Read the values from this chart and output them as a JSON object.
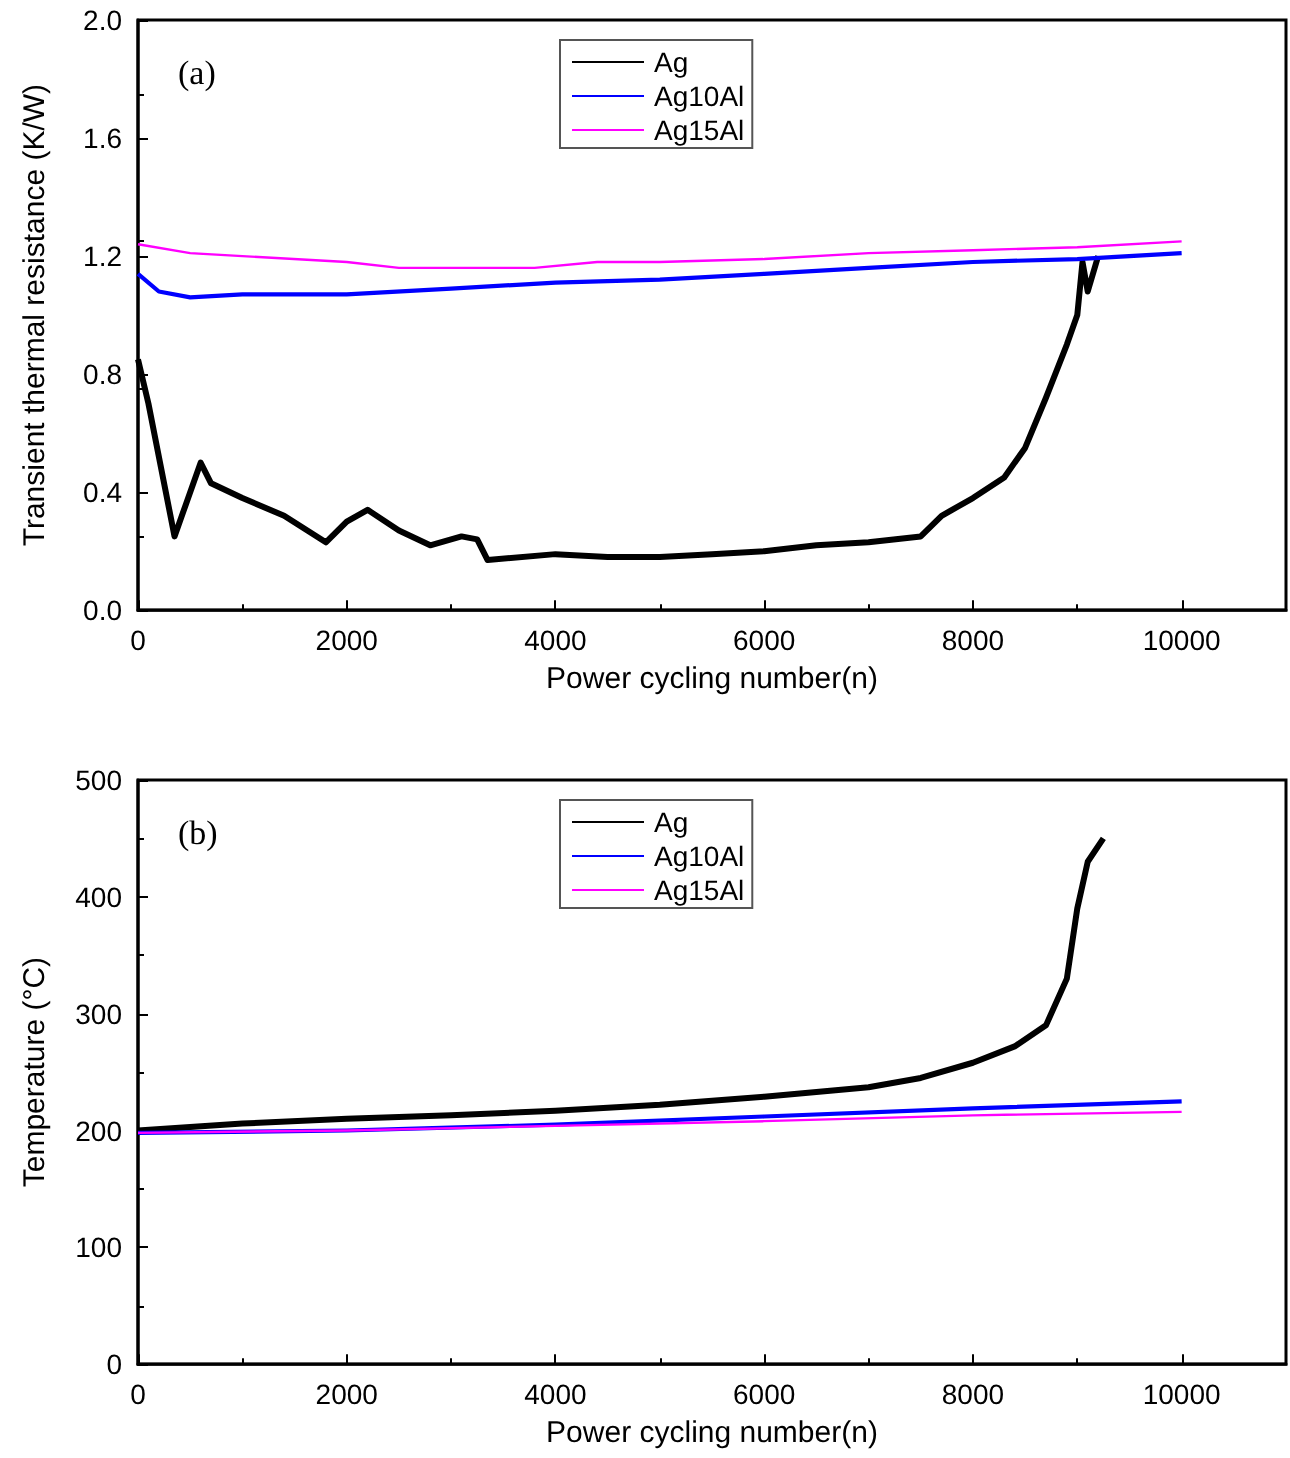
{
  "chart_data": [
    {
      "type": "line",
      "xlabel": "Power cycling number(n)",
      "ylabel": "Transient thermal resistance (K/W)",
      "annotations": [
        "(a)"
      ],
      "xlim": [
        0,
        11000
      ],
      "xticks": [
        0,
        2000,
        4000,
        6000,
        8000,
        10000
      ],
      "ylim": [
        0,
        2
      ],
      "yticks": [
        {
          "value": 0,
          "label": "0.0"
        },
        {
          "value": 0.4,
          "label": "0.4"
        },
        {
          "value": 0.8,
          "label": "0.8"
        },
        {
          "value": 1.2,
          "label": "1.2"
        },
        {
          "value": 1.6,
          "label": "1.6"
        },
        {
          "value": 2,
          "label": "2.0"
        }
      ],
      "grid": false,
      "legend": "top",
      "marker": "none",
      "series": [
        {
          "name": "Ag",
          "color": "#000000",
          "x": [
            0,
            100,
            350,
            450,
            600,
            700,
            1000,
            1400,
            1800,
            2000,
            2200,
            2500,
            2800,
            3100,
            3250,
            3350,
            4000,
            4500,
            5000,
            5500,
            6000,
            6500,
            7000,
            7500,
            7700,
            8000,
            8300,
            8500,
            8700,
            8900,
            9000,
            9050,
            9100,
            9200
          ],
          "values": [
            0.85,
            0.7,
            0.25,
            0.35,
            0.5,
            0.43,
            0.38,
            0.32,
            0.23,
            0.3,
            0.34,
            0.27,
            0.22,
            0.25,
            0.24,
            0.17,
            0.19,
            0.18,
            0.18,
            0.19,
            0.2,
            0.22,
            0.23,
            0.25,
            0.32,
            0.38,
            0.45,
            0.55,
            0.72,
            0.9,
            1.0,
            1.18,
            1.08,
            1.2
          ]
        },
        {
          "name": "Ag10Al",
          "color": "#0000ff",
          "x": [
            0,
            200,
            500,
            1000,
            2000,
            3000,
            4000,
            5000,
            6000,
            7000,
            8000,
            9000,
            10000
          ],
          "values": [
            1.14,
            1.08,
            1.06,
            1.07,
            1.07,
            1.09,
            1.11,
            1.12,
            1.14,
            1.16,
            1.18,
            1.19,
            1.21
          ]
        },
        {
          "name": "Ag15Al",
          "color": "#ff00ff",
          "x": [
            0,
            500,
            1000,
            2000,
            2500,
            3000,
            3800,
            4400,
            5000,
            6000,
            7000,
            8000,
            9000,
            10000
          ],
          "values": [
            1.24,
            1.21,
            1.2,
            1.18,
            1.16,
            1.16,
            1.16,
            1.18,
            1.18,
            1.19,
            1.21,
            1.22,
            1.23,
            1.25
          ]
        }
      ]
    },
    {
      "type": "line",
      "xlabel": "Power cycling number(n)",
      "ylabel": "Temperature (°C)",
      "annotations": [
        "(b)"
      ],
      "xlim": [
        0,
        11000
      ],
      "xticks": [
        0,
        2000,
        4000,
        6000,
        8000,
        10000
      ],
      "ylim": [
        0,
        500
      ],
      "yticks": [
        0,
        100,
        200,
        300,
        400,
        500
      ],
      "grid": false,
      "legend": "top",
      "marker": "none",
      "series": [
        {
          "name": "Ag",
          "color": "#000000",
          "x": [
            0,
            1000,
            2000,
            3000,
            4000,
            5000,
            6000,
            7000,
            7500,
            8000,
            8400,
            8700,
            8900,
            9000,
            9100,
            9250
          ],
          "values": [
            200,
            206,
            210,
            213,
            217,
            222,
            229,
            237,
            245,
            258,
            272,
            290,
            330,
            390,
            430,
            450
          ]
        },
        {
          "name": "Ag10Al",
          "color": "#0000ff",
          "x": [
            0,
            2000,
            4000,
            6000,
            8000,
            10000
          ],
          "values": [
            198,
            200,
            205,
            212,
            219,
            225
          ]
        },
        {
          "name": "Ag15Al",
          "color": "#ff00ff",
          "x": [
            0,
            2000,
            4000,
            6000,
            8000,
            10000
          ],
          "values": [
            198,
            200,
            204,
            208,
            213,
            216
          ]
        }
      ]
    }
  ]
}
